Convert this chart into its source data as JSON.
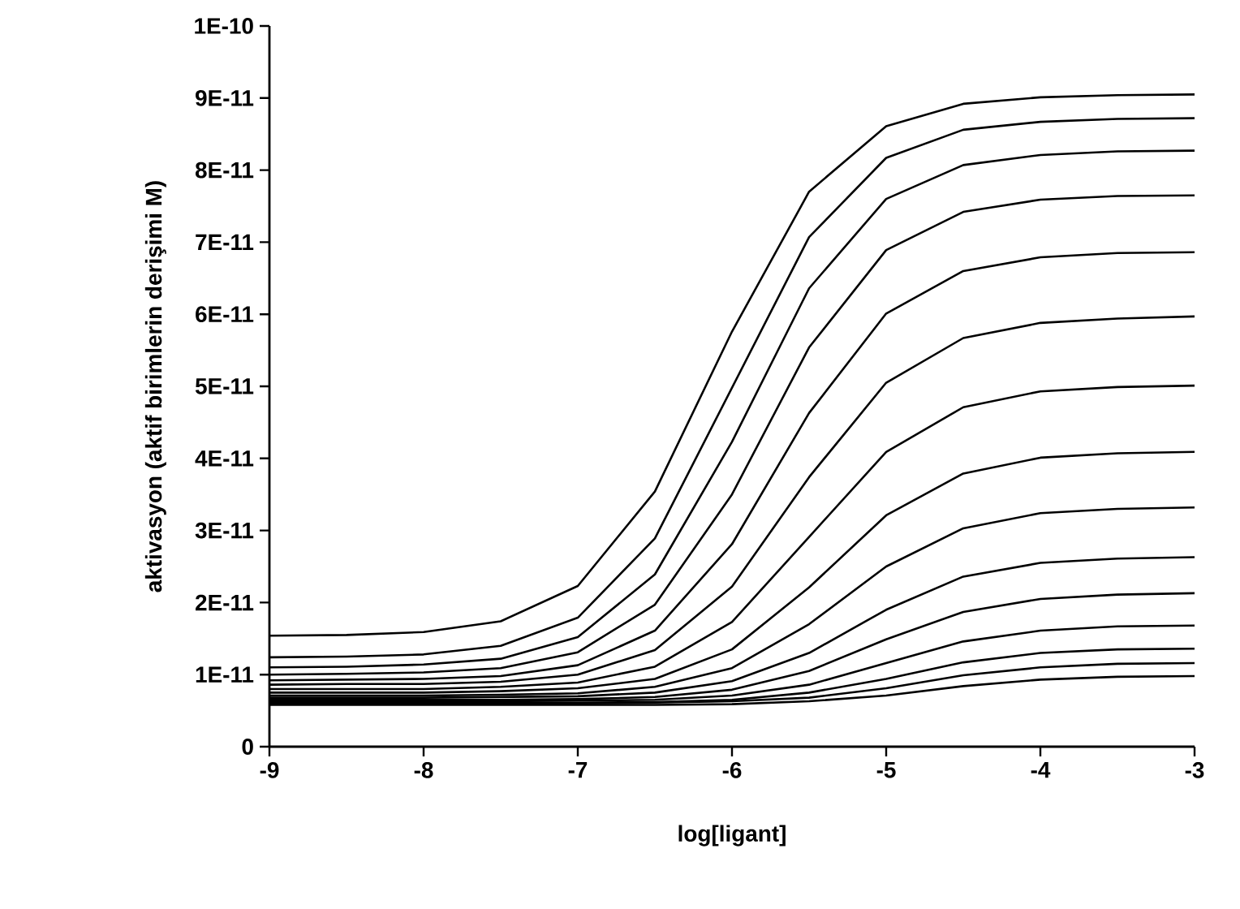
{
  "chart_data": {
    "type": "line",
    "xlabel": "log[ligant]",
    "ylabel": "aktivasyon (aktif birimlerin derişimi M)",
    "xlim": [
      -9,
      -3
    ],
    "xticks": [
      -9,
      -8,
      -7,
      -6,
      -5,
      -4,
      -3
    ],
    "ylim": [
      0,
      1e-10
    ],
    "yticks": [
      0,
      {
        "value": 1e-11,
        "label": "1E-11"
      },
      {
        "value": 2e-11,
        "label": "2E-11"
      },
      {
        "value": 3e-11,
        "label": "3E-11"
      },
      {
        "value": 4e-11,
        "label": "4E-11"
      },
      {
        "value": 5e-11,
        "label": "5E-11"
      },
      {
        "value": 6e-11,
        "label": "6E-11"
      },
      {
        "value": 7e-11,
        "label": "7E-11"
      },
      {
        "value": 8e-11,
        "label": "8E-11"
      },
      {
        "value": 9e-11,
        "label": "9E-11"
      },
      {
        "value": 1e-10,
        "label": "1E-10"
      }
    ],
    "x": [
      -9,
      -8.5,
      -8,
      -7.5,
      -7,
      -6.5,
      -6,
      -5.5,
      -5,
      -4.5,
      -4,
      -3.5,
      -3
    ],
    "marker": "none",
    "line_style": "solid",
    "series": [
      {
        "color": "#000000",
        "values": [
          1.54e-11,
          1.55e-11,
          1.59e-11,
          1.74e-11,
          2.23e-11,
          3.54e-11,
          5.76e-11,
          7.7e-11,
          8.61e-11,
          8.92e-11,
          9.01e-11,
          9.04e-11,
          9.05e-11
        ]
      },
      {
        "color": "#000000",
        "values": [
          1.24e-11,
          1.25e-11,
          1.28e-11,
          1.4e-11,
          1.79e-11,
          2.89e-11,
          4.98e-11,
          7.07e-11,
          8.17e-11,
          8.56e-11,
          8.67e-11,
          8.71e-11,
          8.72e-11
        ]
      },
      {
        "color": "#000000",
        "values": [
          1.1e-11,
          1.11e-11,
          1.14e-11,
          1.22e-11,
          1.52e-11,
          2.39e-11,
          4.23e-11,
          6.36e-11,
          7.6e-11,
          8.07e-11,
          8.21e-11,
          8.26e-11,
          8.27e-11
        ]
      },
      {
        "color": "#000000",
        "values": [
          1e-11,
          1.01e-11,
          1.03e-11,
          1.09e-11,
          1.31e-11,
          1.97e-11,
          3.5e-11,
          5.54e-11,
          6.89e-11,
          7.42e-11,
          7.59e-11,
          7.64e-11,
          7.65e-11
        ]
      },
      {
        "color": "#000000",
        "values": [
          9.2e-12,
          9.3e-12,
          9.4e-12,
          9.8e-12,
          1.13e-11,
          1.61e-11,
          2.81e-11,
          4.63e-11,
          6.01e-11,
          6.6e-11,
          6.79e-11,
          6.85e-11,
          6.86e-11
        ]
      },
      {
        "color": "#000000",
        "values": [
          8.6e-12,
          8.7e-12,
          8.7e-12,
          9e-12,
          1e-11,
          1.34e-11,
          2.22e-11,
          3.74e-11,
          5.05e-11,
          5.67e-11,
          5.88e-11,
          5.94e-11,
          5.97e-11
        ]
      },
      {
        "color": "#000000",
        "values": [
          8e-12,
          8e-12,
          8e-12,
          8.3e-12,
          8.9e-12,
          1.11e-11,
          1.73e-11,
          2.91e-11,
          4.09e-11,
          4.71e-11,
          4.93e-11,
          4.99e-11,
          5.01e-11
        ]
      },
      {
        "color": "#000000",
        "values": [
          7.5e-12,
          7.5e-12,
          7.5e-12,
          7.7e-12,
          8.1e-12,
          9.4e-12,
          1.35e-11,
          2.21e-11,
          3.21e-11,
          3.79e-11,
          4.01e-11,
          4.07e-11,
          4.09e-11
        ]
      },
      {
        "color": "#000000",
        "values": [
          7.1e-12,
          7.1e-12,
          7.1e-12,
          7.2e-12,
          7.4e-12,
          8.3e-12,
          1.09e-11,
          1.7e-11,
          2.5e-11,
          3.03e-11,
          3.24e-11,
          3.3e-11,
          3.32e-11
        ]
      },
      {
        "color": "#000000",
        "values": [
          6.8e-12,
          6.8e-12,
          6.8e-12,
          6.9e-12,
          7e-12,
          7.5e-12,
          9.1e-12,
          1.3e-11,
          1.9e-11,
          2.36e-11,
          2.55e-11,
          2.61e-11,
          2.63e-11
        ]
      },
      {
        "color": "#000000",
        "values": [
          6.5e-12,
          6.5e-12,
          6.5e-12,
          6.5e-12,
          6.6e-12,
          6.9e-12,
          7.9e-12,
          1.05e-11,
          1.49e-11,
          1.87e-11,
          2.05e-11,
          2.11e-11,
          2.13e-11
        ]
      },
      {
        "color": "#000000",
        "values": [
          6.3e-12,
          6.3e-12,
          6.3e-12,
          6.3e-12,
          6.4e-12,
          6.5e-12,
          7.1e-12,
          8.6e-12,
          1.16e-11,
          1.46e-11,
          1.61e-11,
          1.67e-11,
          1.68e-11
        ]
      },
      {
        "color": "#000000",
        "values": [
          6.1e-12,
          6.1e-12,
          6.1e-12,
          6.1e-12,
          6.1e-12,
          6.2e-12,
          6.5e-12,
          7.5e-12,
          9.4e-12,
          1.17e-11,
          1.3e-11,
          1.35e-11,
          1.36e-11
        ]
      },
      {
        "color": "#000000",
        "values": [
          6e-12,
          6e-12,
          6e-12,
          6e-12,
          6e-12,
          6.1e-12,
          6.3e-12,
          6.8e-12,
          8.1e-12,
          9.9e-12,
          1.1e-11,
          1.15e-11,
          1.16e-11
        ]
      },
      {
        "color": "#000000",
        "values": [
          5.8e-12,
          5.8e-12,
          5.8e-12,
          5.8e-12,
          5.8e-12,
          5.8e-12,
          5.9e-12,
          6.3e-12,
          7.1e-12,
          8.4e-12,
          9.3e-12,
          9.7e-12,
          9.8e-12
        ]
      }
    ]
  }
}
